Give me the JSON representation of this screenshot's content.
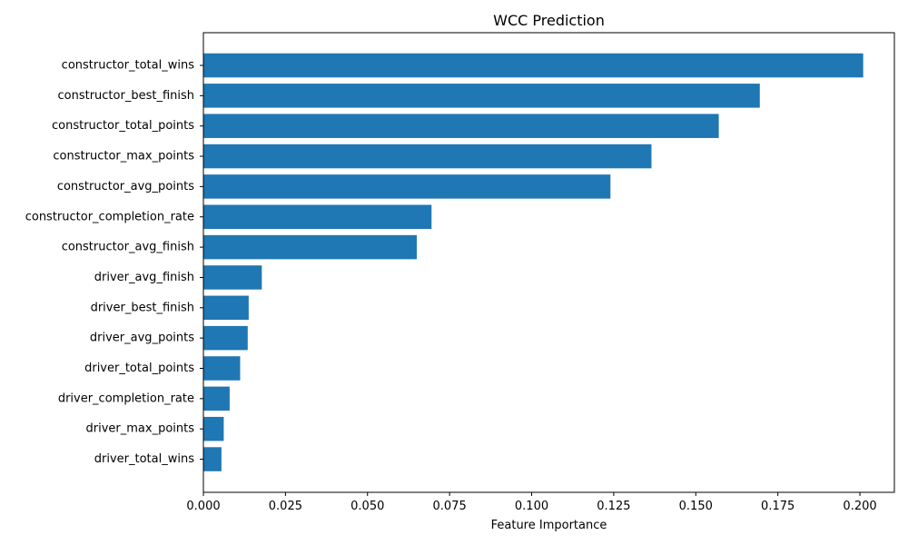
{
  "chart_data": {
    "type": "bar",
    "orientation": "horizontal",
    "title": "WCC Prediction",
    "xlabel": "Feature Importance",
    "ylabel": "",
    "xlim": [
      0,
      0.2105
    ],
    "xticks": [
      "0.000",
      "0.025",
      "0.050",
      "0.075",
      "0.100",
      "0.125",
      "0.150",
      "0.175",
      "0.200"
    ],
    "grid": false,
    "legend": "none",
    "bar_color": "#1f77b4",
    "categories": [
      "constructor_total_wins",
      "constructor_best_finish",
      "constructor_total_points",
      "constructor_max_points",
      "constructor_avg_points",
      "constructor_completion_rate",
      "constructor_avg_finish",
      "driver_avg_finish",
      "driver_best_finish",
      "driver_avg_points",
      "driver_total_points",
      "driver_completion_rate",
      "driver_max_points",
      "driver_total_wins"
    ],
    "values": [
      0.201,
      0.1695,
      0.157,
      0.1365,
      0.124,
      0.0695,
      0.065,
      0.0178,
      0.0138,
      0.0135,
      0.0112,
      0.008,
      0.0062,
      0.0055
    ]
  }
}
